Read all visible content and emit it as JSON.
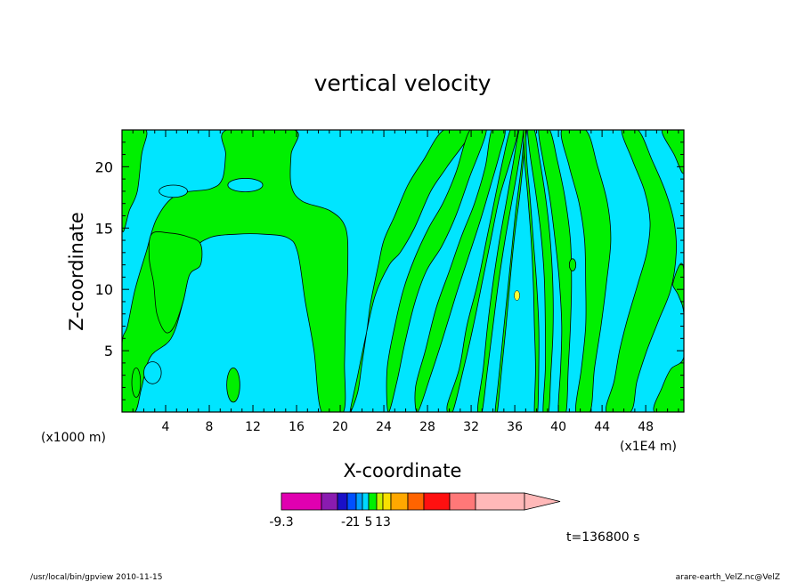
{
  "chart_data": {
    "type": "heatmap",
    "title": "vertical velocity",
    "xlabel": "X-coordinate",
    "ylabel": "Z-coordinate",
    "x_unit_left": "(x1000 m)",
    "x_unit_right": "(x1E4 m)",
    "xlim": [
      0,
      51.5
    ],
    "ylim": [
      0,
      23
    ],
    "x_ticks": [
      4,
      8,
      12,
      16,
      20,
      24,
      28,
      32,
      36,
      40,
      44,
      48
    ],
    "y_ticks": [
      5,
      10,
      15,
      20
    ],
    "grid": false,
    "colors": {
      "background": "#00e5ff",
      "positive_band": "#00f000",
      "contour_line": "#000000",
      "yellow_spot": "#ffff33"
    },
    "colorbar": {
      "colors": [
        "#e000b0",
        "#8a1bb0",
        "#1a10c8",
        "#0050ff",
        "#00a0ff",
        "#00d8ff",
        "#00f000",
        "#c8f000",
        "#f8e000",
        "#ffa800",
        "#ff6400",
        "#ff1010",
        "#ff7878",
        "#ffb8b8"
      ],
      "tick_labels": [
        {
          "label": "-9.3",
          "at_edge": 0
        },
        {
          "label": "-2",
          "at_edge": 3
        },
        {
          "label": "1",
          "at_edge": 4
        },
        {
          "label": "5",
          "at_edge": 6
        },
        {
          "label": "13",
          "at_edge": 8
        }
      ]
    },
    "bands": [
      {
        "name": "left-column",
        "pts": [
          [
            0,
            0
          ],
          [
            1.2,
            0
          ],
          [
            1.8,
            2
          ],
          [
            2.6,
            4.5
          ],
          [
            4.5,
            6
          ],
          [
            5.6,
            9
          ],
          [
            6.6,
            13
          ],
          [
            8,
            14.2
          ],
          [
            10.5,
            14.5
          ],
          [
            13,
            14.5
          ],
          [
            15.2,
            14.2
          ],
          [
            16.1,
            13
          ],
          [
            16.8,
            9
          ],
          [
            17.6,
            5
          ],
          [
            18.3,
            0
          ],
          [
            20.3,
            0
          ],
          [
            20.4,
            4
          ],
          [
            20.5,
            8
          ],
          [
            20.7,
            12
          ],
          [
            20.5,
            15
          ],
          [
            19.1,
            16.4
          ],
          [
            16.5,
            17.2
          ],
          [
            15.5,
            18.5
          ],
          [
            15.5,
            21
          ],
          [
            15.8,
            23
          ],
          [
            9.6,
            23
          ],
          [
            9.5,
            21
          ],
          [
            9.2,
            19
          ],
          [
            8.1,
            18.2
          ],
          [
            5,
            17.7
          ],
          [
            3.2,
            15.8
          ],
          [
            2.2,
            13
          ],
          [
            1.2,
            10
          ],
          [
            0.5,
            7
          ],
          [
            0,
            5.5
          ]
        ]
      },
      {
        "name": "far-left-sliver",
        "pts": [
          [
            0,
            15
          ],
          [
            0.7,
            16.5
          ],
          [
            1.4,
            18
          ],
          [
            1.8,
            21
          ],
          [
            2.2,
            23
          ],
          [
            0,
            23
          ]
        ]
      },
      {
        "name": "left-mid-blob",
        "pts": [
          [
            2.7,
            14.5
          ],
          [
            4.3,
            14.6
          ],
          [
            6,
            14.3
          ],
          [
            7.2,
            13.7
          ],
          [
            7.2,
            12
          ],
          [
            6.2,
            11.2
          ],
          [
            5.6,
            9
          ],
          [
            4.8,
            7
          ],
          [
            4,
            6.5
          ],
          [
            3.2,
            8
          ],
          [
            2.9,
            10.5
          ],
          [
            2.5,
            12.5
          ]
        ]
      },
      {
        "name": "mid-arch",
        "pts": [
          [
            20.9,
            0
          ],
          [
            21.6,
            3
          ],
          [
            22.3,
            6
          ],
          [
            23.2,
            9.5
          ],
          [
            24.5,
            12
          ],
          [
            25.5,
            13
          ],
          [
            26.8,
            15
          ],
          [
            28.3,
            18
          ],
          [
            29.8,
            20
          ],
          [
            32,
            23
          ],
          [
            29.5,
            23
          ],
          [
            27.6,
            20.5
          ],
          [
            26.2,
            18.5
          ],
          [
            25,
            16
          ],
          [
            24,
            14
          ],
          [
            23.5,
            12
          ],
          [
            22.8,
            9
          ],
          [
            22.5,
            7
          ],
          [
            22,
            4
          ],
          [
            21.6,
            1.6
          ]
        ]
      },
      {
        "name": "stripe-a",
        "pts": [
          [
            24.4,
            0
          ],
          [
            25.2,
            2.5
          ],
          [
            25.9,
            5.5
          ],
          [
            26.8,
            8.8
          ],
          [
            27.9,
            11.5
          ],
          [
            29.3,
            13.5
          ],
          [
            30.6,
            16
          ],
          [
            31.8,
            19
          ],
          [
            33.4,
            23
          ],
          [
            31.9,
            23
          ],
          [
            30.6,
            19.5
          ],
          [
            29.4,
            17
          ],
          [
            28.1,
            15
          ],
          [
            26.8,
            12.5
          ],
          [
            25.8,
            10
          ],
          [
            25,
            7
          ],
          [
            24.3,
            3.5
          ]
        ]
      },
      {
        "name": "stripe-b",
        "pts": [
          [
            27.1,
            0
          ],
          [
            28.3,
            3
          ],
          [
            29.4,
            6
          ],
          [
            30.6,
            9.5
          ],
          [
            31.7,
            12.5
          ],
          [
            32.8,
            15.5
          ],
          [
            33.8,
            18.5
          ],
          [
            34.6,
            21
          ],
          [
            35.1,
            23
          ],
          [
            33.9,
            23
          ],
          [
            33.3,
            20
          ],
          [
            32.3,
            17
          ],
          [
            31.1,
            14.3
          ],
          [
            30,
            11.5
          ],
          [
            28.8,
            8.5
          ],
          [
            27.8,
            5
          ],
          [
            26.9,
            2
          ]
        ]
      },
      {
        "name": "stripe-c",
        "pts": [
          [
            30.3,
            0
          ],
          [
            31.3,
            3.5
          ],
          [
            32.2,
            7
          ],
          [
            33,
            10.5
          ],
          [
            33.8,
            14
          ],
          [
            34.6,
            17.5
          ],
          [
            35.6,
            20.5
          ],
          [
            36.3,
            23
          ],
          [
            35.6,
            23
          ],
          [
            34.9,
            20.5
          ],
          [
            34.2,
            17.5
          ],
          [
            33.4,
            14
          ],
          [
            32.6,
            10.5
          ],
          [
            31.6,
            7
          ],
          [
            30.9,
            3.5
          ],
          [
            29.8,
            0.5
          ]
        ]
      },
      {
        "name": "stripe-d",
        "pts": [
          [
            33,
            0
          ],
          [
            33.5,
            3.5
          ],
          [
            34,
            7
          ],
          [
            34.5,
            10.5
          ],
          [
            35.1,
            14
          ],
          [
            35.7,
            17
          ],
          [
            36.3,
            20
          ],
          [
            36.8,
            23
          ],
          [
            36.4,
            23
          ],
          [
            35.8,
            20
          ],
          [
            35.2,
            17
          ],
          [
            34.6,
            14
          ],
          [
            34,
            10.5
          ],
          [
            33.5,
            7
          ],
          [
            33.1,
            3.5
          ],
          [
            32.6,
            0.3
          ]
        ]
      },
      {
        "name": "stripe-e",
        "pts": [
          [
            34.4,
            0
          ],
          [
            34.8,
            3.5
          ],
          [
            35.2,
            7
          ],
          [
            35.6,
            11
          ],
          [
            36,
            14.5
          ],
          [
            36.5,
            18
          ],
          [
            36.9,
            21.5
          ],
          [
            37.1,
            23
          ],
          [
            36.9,
            23
          ],
          [
            36.6,
            20
          ],
          [
            36.1,
            16.5
          ],
          [
            35.7,
            13
          ],
          [
            35.3,
            9.5
          ],
          [
            34.9,
            6
          ],
          [
            34.5,
            2.5
          ],
          [
            34.2,
            0
          ]
        ]
      },
      {
        "name": "stripe-f",
        "pts": [
          [
            37.8,
            0
          ],
          [
            37.9,
            3.5
          ],
          [
            37.8,
            7
          ],
          [
            37.7,
            10.5
          ],
          [
            37.5,
            14
          ],
          [
            37.2,
            17.5
          ],
          [
            36.9,
            20.5
          ],
          [
            36.8,
            23
          ],
          [
            37,
            23
          ],
          [
            37.1,
            20.5
          ],
          [
            37.4,
            17.5
          ],
          [
            37.7,
            14
          ],
          [
            38,
            10.5
          ],
          [
            38.2,
            7
          ],
          [
            38.2,
            3.5
          ],
          [
            38.1,
            0
          ]
        ]
      },
      {
        "name": "stripe-g",
        "pts": [
          [
            38.6,
            0
          ],
          [
            38.8,
            3.5
          ],
          [
            38.8,
            7
          ],
          [
            38.7,
            11
          ],
          [
            38.4,
            14.5
          ],
          [
            37.9,
            18
          ],
          [
            37.4,
            21
          ],
          [
            37.2,
            23
          ],
          [
            37.8,
            23
          ],
          [
            38.3,
            20.5
          ],
          [
            38.9,
            17
          ],
          [
            39.3,
            13.5
          ],
          [
            39.5,
            10
          ],
          [
            39.5,
            6.5
          ],
          [
            39.3,
            3
          ],
          [
            39.1,
            0
          ]
        ]
      },
      {
        "name": "stripe-h",
        "pts": [
          [
            40,
            0
          ],
          [
            40.2,
            3.5
          ],
          [
            40.3,
            7
          ],
          [
            40.1,
            10.5
          ],
          [
            39.7,
            14
          ],
          [
            39.2,
            17.5
          ],
          [
            38.6,
            20.5
          ],
          [
            38.2,
            23
          ],
          [
            39.2,
            23
          ],
          [
            39.9,
            20.5
          ],
          [
            40.6,
            17.5
          ],
          [
            41.1,
            14
          ],
          [
            41.2,
            10.5
          ],
          [
            41.1,
            7
          ],
          [
            40.9,
            3.5
          ],
          [
            40.7,
            0
          ]
        ]
      },
      {
        "name": "stripe-i",
        "pts": [
          [
            41.6,
            0
          ],
          [
            42.1,
            3.5
          ],
          [
            42.5,
            7
          ],
          [
            42.5,
            10.5
          ],
          [
            42.4,
            14
          ],
          [
            41.9,
            17
          ],
          [
            41,
            20
          ],
          [
            40.3,
            23
          ],
          [
            42.5,
            23
          ],
          [
            43.6,
            20
          ],
          [
            44.5,
            17
          ],
          [
            44.8,
            14
          ],
          [
            44.4,
            10.5
          ],
          [
            43.9,
            7
          ],
          [
            43.3,
            3.5
          ],
          [
            42.9,
            0
          ]
        ]
      },
      {
        "name": "stripe-j",
        "pts": [
          [
            44.4,
            0
          ],
          [
            45.1,
            2.5
          ],
          [
            45.6,
            5
          ],
          [
            46.3,
            7.5
          ],
          [
            47.3,
            10.5
          ],
          [
            48.1,
            13
          ],
          [
            48.4,
            15.5
          ],
          [
            47.9,
            18
          ],
          [
            46.8,
            20.5
          ],
          [
            45.8,
            23
          ],
          [
            47.3,
            23
          ],
          [
            48.6,
            20.5
          ],
          [
            49.8,
            18
          ],
          [
            50.6,
            15.5
          ],
          [
            50.8,
            13
          ],
          [
            50.3,
            10
          ],
          [
            49.2,
            7.5
          ],
          [
            48.1,
            5
          ],
          [
            47.2,
            2.5
          ],
          [
            46.6,
            0
          ]
        ]
      },
      {
        "name": "stripe-k",
        "pts": [
          [
            48.8,
            0
          ],
          [
            49.5,
            2
          ],
          [
            50.3,
            3.5
          ],
          [
            51.5,
            4.5
          ],
          [
            51.5,
            8
          ],
          [
            51,
            9.5
          ],
          [
            50.5,
            10.5
          ],
          [
            51.5,
            11.5
          ],
          [
            51.5,
            0
          ]
        ]
      },
      {
        "name": "right-top",
        "pts": [
          [
            49.5,
            23
          ],
          [
            50.6,
            21
          ],
          [
            51.5,
            19.5
          ],
          [
            51.5,
            23
          ]
        ]
      }
    ],
    "islands": [
      {
        "name": "blue-hole-upper",
        "cx": 11.3,
        "cy": 18.5,
        "rx": 1.6,
        "ry": 0.55
      },
      {
        "name": "blue-hole-mid",
        "cx": 4.7,
        "cy": 18,
        "rx": 1.3,
        "ry": 0.5
      },
      {
        "name": "blue-hole-low",
        "cx": 2.8,
        "cy": 3.2,
        "rx": 0.8,
        "ry": 0.9
      },
      {
        "name": "green-islet-a",
        "cx": 10.2,
        "cy": 2.2,
        "rx": 0.6,
        "ry": 1.4
      },
      {
        "name": "green-islet-b",
        "cx": 1.3,
        "cy": 2.4,
        "rx": 0.4,
        "ry": 1.2
      },
      {
        "name": "green-islet-c",
        "cx": 41.3,
        "cy": 12,
        "rx": 0.3,
        "ry": 0.5
      }
    ],
    "yellow_spots": [
      {
        "cx": 36.2,
        "cy": 9.5,
        "rx": 0.25,
        "ry": 0.4
      }
    ]
  },
  "annotations": {
    "time": "t=136800 s",
    "footer_left": "/usr/local/bin/gpview  2010-11-15",
    "footer_right": "arare-earth_VelZ.nc@VelZ"
  }
}
